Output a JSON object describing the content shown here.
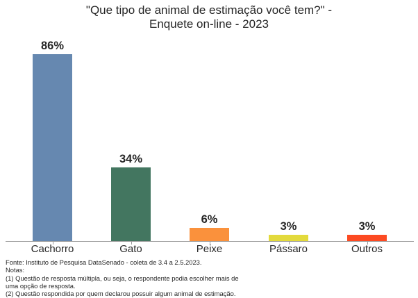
{
  "chart_data": {
    "type": "bar",
    "title": "\"Que tipo de animal de estimação você tem?\" - Enquete on-line - 2023",
    "title_lines": [
      "\"Que tipo de animal de estimação você tem?\" -",
      "Enquete on-line - 2023"
    ],
    "categories": [
      "Cachorro",
      "Gato",
      "Peixe",
      "Pássaro",
      "Outros"
    ],
    "values": [
      86,
      34,
      6,
      3,
      3
    ],
    "value_labels": [
      "86%",
      "34%",
      "6%",
      "3%",
      "3%"
    ],
    "colors": [
      "#6688b0",
      "#437660",
      "#fa913c",
      "#e3da3c",
      "#fc4a22"
    ],
    "xlabel": "",
    "ylabel": "",
    "ylim": [
      0,
      100
    ],
    "grid": false,
    "legend": null
  },
  "footer": {
    "source": "Fonte: Instituto de Pesquisa DataSenado - coleta de 3.4 a 2.5.2023.",
    "notes_label": "Notas:",
    "note1_line1": "(1) Questão de resposta múltipla, ou seja, o respondente podia escolher mais de",
    "note1_line2": "uma opção de resposta.",
    "note2": "(2) Questão respondida por quem declarou possuir algum animal de estimação."
  }
}
